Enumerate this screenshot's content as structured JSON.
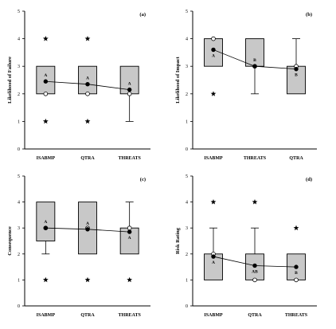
{
  "chart_data": [
    {
      "type": "box",
      "panel_label": "(a)",
      "ylabel": "Likelihood of Failure",
      "categories": [
        "ISABMP",
        "QTRA",
        "THREATS"
      ],
      "ylim": [
        0,
        5
      ],
      "yticks": [
        "0",
        "1",
        "2",
        "3",
        "4",
        "5"
      ],
      "boxes": [
        {
          "q1": 2,
          "q3": 3,
          "median": 2,
          "whisker_low": null,
          "whisker_high": null
        },
        {
          "q1": 2,
          "q3": 3,
          "median": 2,
          "whisker_low": null,
          "whisker_high": null
        },
        {
          "q1": 2,
          "q3": 3,
          "median": 2,
          "whisker_low": 1,
          "whisker_high": null
        }
      ],
      "means": [
        2.45,
        2.35,
        2.15
      ],
      "outliers": [
        [
          4,
          1
        ],
        [
          4,
          1
        ],
        []
      ],
      "group_letters": [
        "A",
        "A",
        "A"
      ]
    },
    {
      "type": "box",
      "panel_label": "(b)",
      "ylabel": "Likelihood of Impact",
      "categories": [
        "ISABMP",
        "THREATS",
        "QTRA"
      ],
      "ylim": [
        0,
        5
      ],
      "yticks": [
        "0",
        "1",
        "2",
        "3",
        "4",
        "5"
      ],
      "boxes": [
        {
          "q1": 3,
          "q3": 4,
          "median": 4,
          "whisker_low": null,
          "whisker_high": null
        },
        {
          "q1": 3,
          "q3": 4,
          "median": 3,
          "whisker_low": 2,
          "whisker_high": null
        },
        {
          "q1": 2,
          "q3": 3,
          "median": 3,
          "whisker_low": null,
          "whisker_high": 4
        }
      ],
      "means": [
        3.6,
        3.0,
        2.9
      ],
      "outliers": [
        [
          2
        ],
        [],
        []
      ],
      "group_letters": [
        "A",
        "B",
        "B"
      ]
    },
    {
      "type": "box",
      "panel_label": "(c)",
      "ylabel": "Consequence",
      "categories": [
        "ISABMP",
        "QTRA",
        "THREATS"
      ],
      "ylim": [
        0,
        5
      ],
      "yticks": [
        "0",
        "1",
        "2",
        "3",
        "4",
        "5"
      ],
      "boxes": [
        {
          "q1": 2.5,
          "q3": 4,
          "median": 3,
          "whisker_low": 2,
          "whisker_high": null
        },
        {
          "q1": 2,
          "q3": 4,
          "median": 3,
          "whisker_low": null,
          "whisker_high": null
        },
        {
          "q1": 2,
          "q3": 3,
          "median": 3,
          "whisker_low": null,
          "whisker_high": 4
        }
      ],
      "means": [
        3.0,
        2.95,
        2.85
      ],
      "outliers": [
        [
          1
        ],
        [
          1
        ],
        [
          1
        ]
      ],
      "group_letters": [
        "A",
        "A",
        "A"
      ]
    },
    {
      "type": "box",
      "panel_label": "(d)",
      "ylabel": "Risk Rating",
      "categories": [
        "ISABMP",
        "QTRA",
        "THREATS"
      ],
      "ylim": [
        0,
        5
      ],
      "yticks": [
        "0",
        "1",
        "2",
        "3",
        "4",
        "5"
      ],
      "boxes": [
        {
          "q1": 1,
          "q3": 2,
          "median": 2,
          "whisker_low": null,
          "whisker_high": 3
        },
        {
          "q1": 1,
          "q3": 2,
          "median": 1,
          "whisker_low": null,
          "whisker_high": 3
        },
        {
          "q1": 1,
          "q3": 2,
          "median": 1,
          "whisker_low": null,
          "whisker_high": null
        }
      ],
      "means": [
        1.9,
        1.55,
        1.5
      ],
      "outliers": [
        [
          4
        ],
        [
          4
        ],
        [
          3
        ]
      ],
      "group_letters": [
        "A",
        "AB",
        "B"
      ]
    }
  ],
  "colors": {
    "box_fill": "#c8c8c8",
    "stroke": "#000000",
    "median_marker_fill": "#ffffff",
    "mean_marker_fill": "#000000"
  }
}
